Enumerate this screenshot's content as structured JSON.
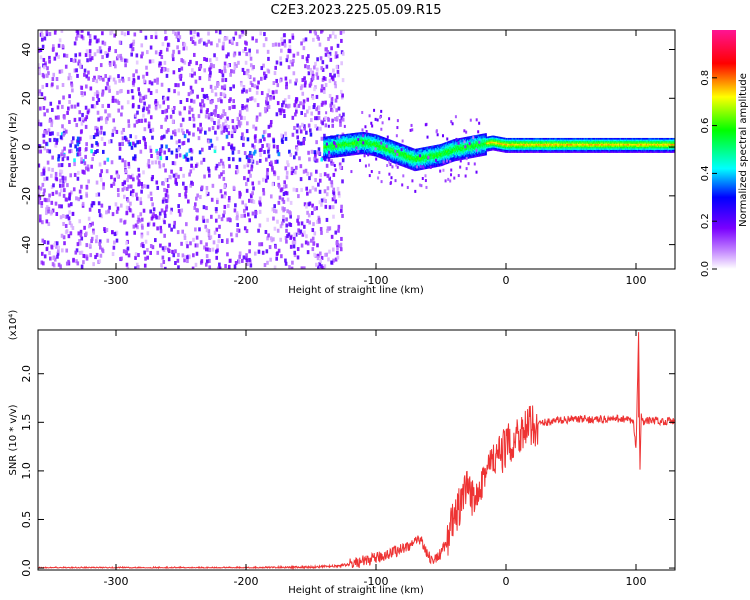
{
  "title": "C2E3.2023.225.05.09.R15",
  "chart_data": [
    {
      "type": "heatmap",
      "xlabel": "Height of straight line (km)",
      "ylabel": "Frequency (Hz)",
      "xlim": [
        -360,
        130
      ],
      "ylim": [
        -50,
        48
      ],
      "x_ticks": [
        -300,
        -200,
        -100,
        0,
        100
      ],
      "y_ticks": [
        -40,
        -20,
        0,
        20,
        40
      ],
      "x_tick_labels": [
        "-300",
        "-200",
        "-100",
        "0",
        "100"
      ],
      "y_tick_labels": [
        "-40",
        "-20",
        "0",
        "20",
        "40"
      ],
      "colorbar": {
        "label": "Normalized spectral amplitude",
        "range": [
          0,
          1
        ],
        "ticks": [
          0.0,
          0.2,
          0.4,
          0.6,
          0.8
        ],
        "tick_labels": [
          "0.0",
          "0.2",
          "0.4",
          "0.6",
          "0.8"
        ],
        "colors": [
          "#ffffff",
          "#7a00ff",
          "#0000ff",
          "#00ffff",
          "#00ff00",
          "#ffff00",
          "#ff0000",
          "#ff1493"
        ]
      },
      "noise_region_x": [
        -360,
        -140
      ],
      "ridge": {
        "x": [
          -140,
          -125,
          -110,
          -100,
          -90,
          -80,
          -70,
          -60,
          -50,
          -40,
          -30,
          -20,
          -10,
          0,
          20,
          50,
          80,
          100,
          130
        ],
        "y": [
          0,
          1,
          2,
          1,
          -1,
          -3,
          -5,
          -4,
          -3,
          -1,
          0,
          1,
          2,
          1,
          1,
          1,
          1,
          1,
          1
        ]
      }
    },
    {
      "type": "line",
      "xlabel": "Height of straight line (km)",
      "ylabel": "SNR (10 * v/v)",
      "yscale_label": "(x10⁴)",
      "xlim": [
        -360,
        130
      ],
      "ylim": [
        -0.02,
        2.45
      ],
      "x_ticks": [
        -300,
        -200,
        -100,
        0,
        100
      ],
      "y_ticks": [
        0.0,
        0.5,
        1.0,
        1.5,
        2.0
      ],
      "x_tick_labels": [
        "-300",
        "-200",
        "-100",
        "0",
        "100"
      ],
      "y_tick_labels": [
        "0.0",
        "0.5",
        "1.0",
        "1.5",
        "2.0"
      ],
      "series": [
        {
          "color": "#ee3333",
          "x": [
            -360,
            -300,
            -200,
            -150,
            -130,
            -120,
            -110,
            -100,
            -90,
            -80,
            -70,
            -65,
            -60,
            -55,
            -50,
            -45,
            -40,
            -35,
            -30,
            -25,
            -20,
            -15,
            -10,
            -5,
            0,
            5,
            10,
            20,
            30,
            40,
            50,
            60,
            70,
            80,
            90,
            98,
            100,
            102,
            103,
            104,
            105,
            106,
            110,
            120,
            130
          ],
          "y": [
            0.0,
            0.0,
            0.0,
            0.01,
            0.02,
            0.04,
            0.07,
            0.1,
            0.15,
            0.2,
            0.26,
            0.3,
            0.12,
            0.08,
            0.15,
            0.3,
            0.5,
            0.65,
            0.8,
            0.7,
            0.9,
            1.0,
            1.1,
            1.15,
            1.25,
            1.3,
            1.4,
            1.46,
            1.5,
            1.52,
            1.53,
            1.53,
            1.53,
            1.53,
            1.54,
            1.5,
            1.2,
            2.4,
            0.95,
            1.6,
            1.52,
            1.5,
            1.52,
            1.51,
            1.52
          ]
        }
      ]
    }
  ]
}
